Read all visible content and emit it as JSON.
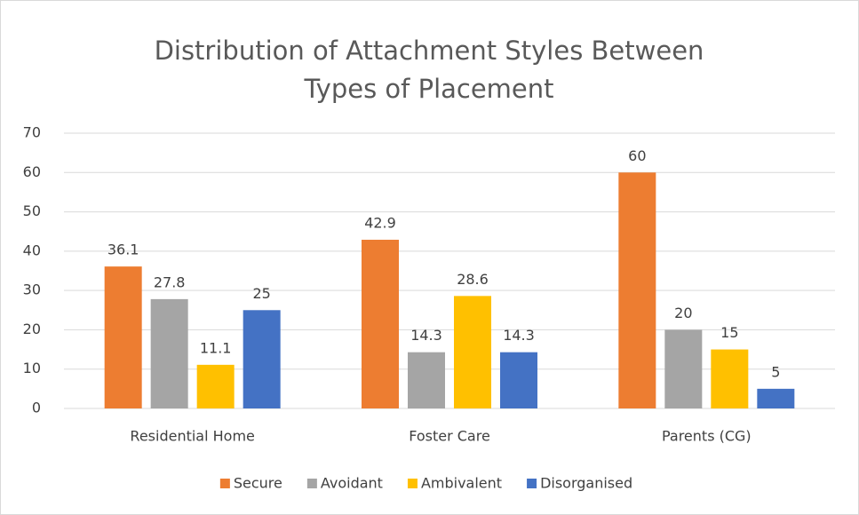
{
  "chart_data": {
    "type": "bar",
    "title": "Distribution of Attachment Styles Between Types of Placement",
    "categories": [
      "Residential Home",
      "Foster Care",
      "Parents (CG)"
    ],
    "series": [
      {
        "name": "Secure",
        "color": "#ed7d31",
        "values": [
          36.1,
          42.9,
          60
        ]
      },
      {
        "name": "Avoidant",
        "color": "#a5a5a5",
        "values": [
          27.8,
          14.3,
          20
        ]
      },
      {
        "name": "Ambivalent",
        "color": "#ffc000",
        "values": [
          11.1,
          28.6,
          15
        ]
      },
      {
        "name": "Disorganised",
        "color": "#4472c4",
        "values": [
          25,
          14.3,
          5
        ]
      }
    ],
    "ylim": [
      0,
      70
    ],
    "yticks": [
      0,
      10,
      20,
      30,
      40,
      50,
      60,
      70
    ],
    "grid": true,
    "legend": "bottom"
  }
}
